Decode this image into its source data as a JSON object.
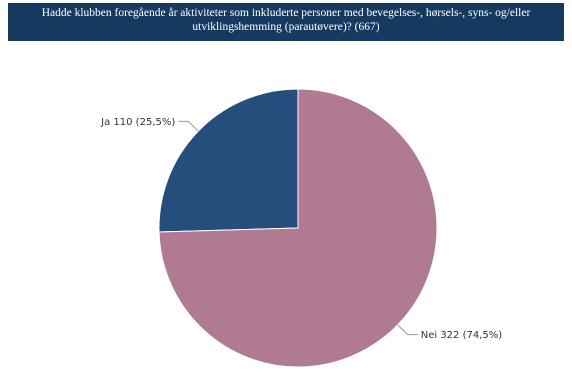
{
  "chart_data": {
    "type": "pie",
    "title": "Hadde klubben foregående år aktiviteter som inkluderte personer med bevegelses-, hørsels-, syns- og/eller utviklingshemming (parautøvere)? (667)",
    "slices": [
      {
        "label": "Ja 110 (25,5%)",
        "value": 110,
        "percent": 25.5,
        "color": "#264e7c"
      },
      {
        "label": "Nei 322 (74,5%)",
        "value": 322,
        "percent": 74.5,
        "color": "#b07a93"
      }
    ],
    "legend": "none"
  }
}
